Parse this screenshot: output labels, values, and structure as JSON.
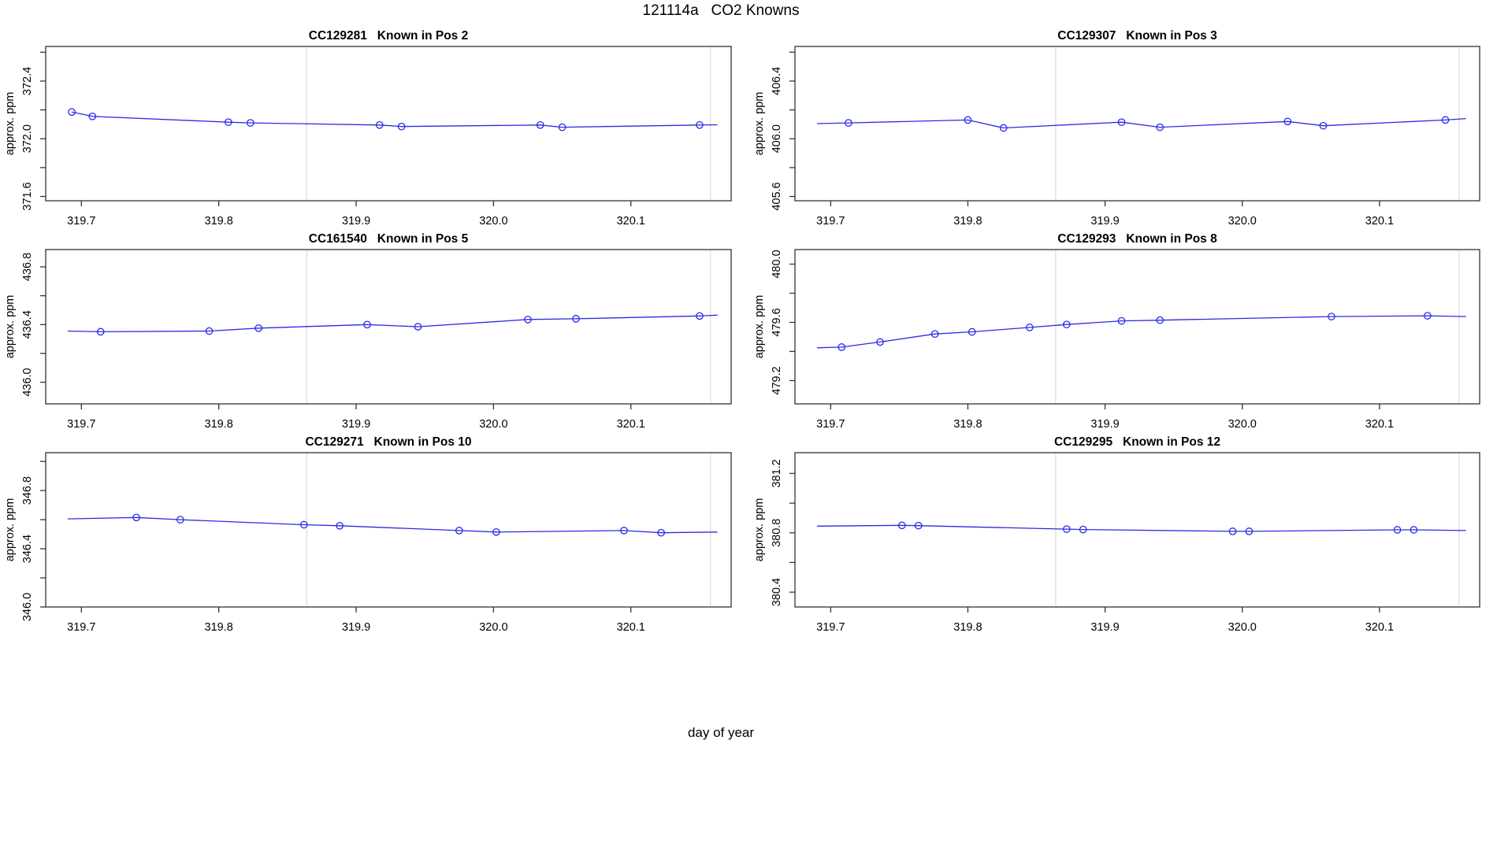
{
  "header": {
    "title": "121114a   CO2 Knowns"
  },
  "footer": {
    "xlabel": "day of year"
  },
  "colors": {
    "line": "#2a2ae6",
    "marker": "#2a2ae6",
    "gridline": "#dcdcdc",
    "axis": "#333333",
    "text": "#000000",
    "background": "#ffffff"
  },
  "axes": {
    "xlim": [
      319.674,
      320.173
    ],
    "x_ticks": [
      319.7,
      319.8,
      319.9,
      320.0,
      320.1
    ],
    "x_tick_labels": [
      "319.7",
      "319.8",
      "319.9",
      "320.0",
      "320.1"
    ],
    "vlines": [
      319.864,
      320.158
    ],
    "ylabel": "approx. ppm"
  },
  "chart_data": [
    {
      "type": "line",
      "title_id": "CC129281",
      "title_label": "Known in Pos 2",
      "ylabel": "approx. ppm",
      "ylim": [
        371.57,
        372.64
      ],
      "y_ticks": [
        371.6,
        371.8,
        372.0,
        372.2,
        372.4,
        372.6
      ],
      "y_tick_labels": [
        "371.6",
        "",
        "372.0",
        "",
        "372.4",
        ""
      ],
      "line": [
        [
          319.693,
          372.185
        ],
        [
          319.708,
          372.155
        ],
        [
          319.807,
          372.115
        ],
        [
          319.823,
          372.11
        ],
        [
          319.917,
          372.095
        ],
        [
          319.933,
          372.085
        ],
        [
          320.034,
          372.095
        ],
        [
          320.05,
          372.08
        ],
        [
          320.15,
          372.095
        ],
        [
          320.163,
          372.097
        ]
      ],
      "points": [
        [
          319.693,
          372.185
        ],
        [
          319.708,
          372.155
        ],
        [
          319.807,
          372.115
        ],
        [
          319.823,
          372.11
        ],
        [
          319.917,
          372.095
        ],
        [
          319.933,
          372.085
        ],
        [
          320.034,
          372.095
        ],
        [
          320.05,
          372.08
        ],
        [
          320.15,
          372.095
        ]
      ]
    },
    {
      "type": "line",
      "title_id": "CC129307",
      "title_label": "Known in Pos 3",
      "ylabel": "approx. ppm",
      "ylim": [
        405.57,
        406.64
      ],
      "y_ticks": [
        405.6,
        405.8,
        406.0,
        406.2,
        406.4,
        406.6
      ],
      "y_tick_labels": [
        "405.6",
        "",
        "406.0",
        "",
        "406.4",
        ""
      ],
      "line": [
        [
          319.69,
          406.105
        ],
        [
          319.713,
          406.11
        ],
        [
          319.8,
          406.13
        ],
        [
          319.826,
          406.075
        ],
        [
          319.912,
          406.115
        ],
        [
          319.94,
          406.08
        ],
        [
          320.033,
          406.12
        ],
        [
          320.059,
          406.09
        ],
        [
          320.148,
          406.13
        ],
        [
          320.163,
          406.14
        ]
      ],
      "points": [
        [
          319.713,
          406.11
        ],
        [
          319.8,
          406.13
        ],
        [
          319.826,
          406.075
        ],
        [
          319.912,
          406.115
        ],
        [
          319.94,
          406.08
        ],
        [
          320.033,
          406.12
        ],
        [
          320.059,
          406.09
        ],
        [
          320.148,
          406.13
        ]
      ]
    },
    {
      "type": "line",
      "title_id": "CC161540",
      "title_label": "Known in Pos 5",
      "ylabel": "approx. ppm",
      "ylim": [
        435.85,
        436.92
      ],
      "y_ticks": [
        436.0,
        436.2,
        436.4,
        436.6,
        436.8
      ],
      "y_tick_labels": [
        "436.0",
        "",
        "436.4",
        "",
        "436.8"
      ],
      "line": [
        [
          319.69,
          436.355
        ],
        [
          319.714,
          436.35
        ],
        [
          319.793,
          436.355
        ],
        [
          319.829,
          436.375
        ],
        [
          319.908,
          436.4
        ],
        [
          319.945,
          436.385
        ],
        [
          320.025,
          436.435
        ],
        [
          320.06,
          436.44
        ],
        [
          320.15,
          436.46
        ],
        [
          320.163,
          436.465
        ]
      ],
      "points": [
        [
          319.714,
          436.35
        ],
        [
          319.793,
          436.355
        ],
        [
          319.829,
          436.375
        ],
        [
          319.908,
          436.4
        ],
        [
          319.945,
          436.385
        ],
        [
          320.025,
          436.435
        ],
        [
          320.06,
          436.44
        ],
        [
          320.15,
          436.46
        ]
      ]
    },
    {
      "type": "line",
      "title_id": "CC129293",
      "title_label": "Known in Pos 8",
      "ylabel": "approx. ppm",
      "ylim": [
        479.04,
        480.1
      ],
      "y_ticks": [
        479.2,
        479.4,
        479.6,
        479.8,
        480.0
      ],
      "y_tick_labels": [
        "479.2",
        "",
        "479.6",
        "",
        "480.0"
      ],
      "line": [
        [
          319.69,
          479.425
        ],
        [
          319.708,
          479.43
        ],
        [
          319.736,
          479.465
        ],
        [
          319.776,
          479.52
        ],
        [
          319.803,
          479.535
        ],
        [
          319.845,
          479.565
        ],
        [
          319.872,
          479.585
        ],
        [
          319.912,
          479.61
        ],
        [
          319.94,
          479.615
        ],
        [
          320.065,
          479.64
        ],
        [
          320.135,
          479.645
        ],
        [
          320.163,
          479.64
        ]
      ],
      "points": [
        [
          319.708,
          479.43
        ],
        [
          319.736,
          479.465
        ],
        [
          319.776,
          479.52
        ],
        [
          319.803,
          479.535
        ],
        [
          319.845,
          479.565
        ],
        [
          319.872,
          479.585
        ],
        [
          319.912,
          479.61
        ],
        [
          319.94,
          479.615
        ],
        [
          320.065,
          479.64
        ],
        [
          320.135,
          479.645
        ]
      ]
    },
    {
      "type": "line",
      "title_id": "CC129271",
      "title_label": "Known in Pos 10",
      "ylabel": "approx. ppm",
      "ylim": [
        346.0,
        347.06
      ],
      "y_ticks": [
        346.0,
        346.2,
        346.4,
        346.6,
        346.8,
        347.0
      ],
      "y_tick_labels": [
        "346.0",
        "",
        "346.4",
        "",
        "346.8",
        ""
      ],
      "line": [
        [
          319.69,
          346.605
        ],
        [
          319.74,
          346.615
        ],
        [
          319.772,
          346.6
        ],
        [
          319.862,
          346.565
        ],
        [
          319.888,
          346.558
        ],
        [
          319.975,
          346.525
        ],
        [
          320.002,
          346.515
        ],
        [
          320.095,
          346.525
        ],
        [
          320.122,
          346.51
        ],
        [
          320.163,
          346.515
        ]
      ],
      "points": [
        [
          319.74,
          346.615
        ],
        [
          319.772,
          346.6
        ],
        [
          319.862,
          346.565
        ],
        [
          319.888,
          346.558
        ],
        [
          319.975,
          346.525
        ],
        [
          320.002,
          346.515
        ],
        [
          320.095,
          346.525
        ],
        [
          320.122,
          346.51
        ]
      ]
    },
    {
      "type": "line",
      "title_id": "CC129295",
      "title_label": "Known in Pos 12",
      "ylabel": "approx. ppm",
      "ylim": [
        380.3,
        381.34
      ],
      "y_ticks": [
        380.4,
        380.6,
        380.8,
        381.0,
        381.2
      ],
      "y_tick_labels": [
        "380.4",
        "",
        "380.8",
        "",
        "381.2"
      ],
      "line": [
        [
          319.69,
          380.845
        ],
        [
          319.752,
          380.85
        ],
        [
          319.764,
          380.848
        ],
        [
          319.872,
          380.825
        ],
        [
          319.884,
          380.822
        ],
        [
          319.993,
          380.81
        ],
        [
          320.005,
          380.81
        ],
        [
          320.113,
          380.82
        ],
        [
          320.125,
          380.82
        ],
        [
          320.163,
          380.815
        ]
      ],
      "points": [
        [
          319.752,
          380.85
        ],
        [
          319.764,
          380.848
        ],
        [
          319.872,
          380.825
        ],
        [
          319.884,
          380.822
        ],
        [
          319.993,
          380.81
        ],
        [
          320.005,
          380.81
        ],
        [
          320.113,
          380.82
        ],
        [
          320.125,
          380.82
        ]
      ]
    }
  ]
}
